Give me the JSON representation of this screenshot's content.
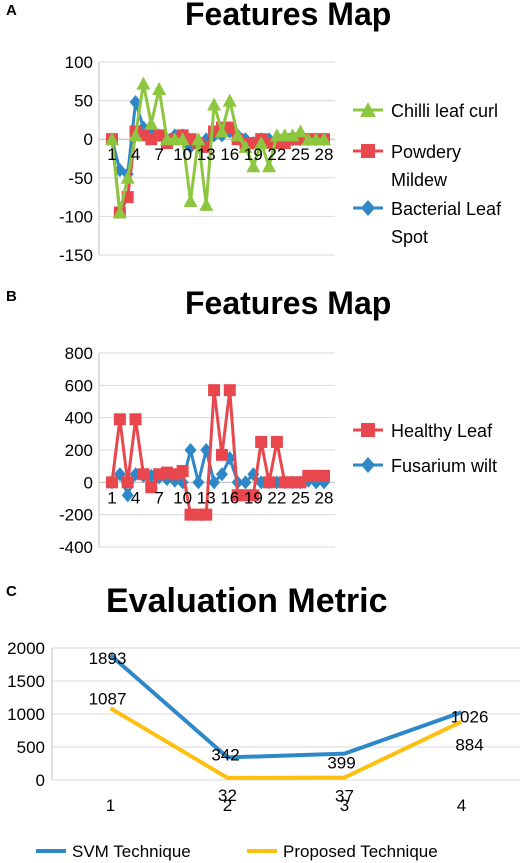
{
  "panels": [
    {
      "letter": "A",
      "title": "Features Map"
    },
    {
      "letter": "B",
      "title": "Features Map"
    },
    {
      "letter": "C",
      "title": "Evaluation Metric"
    }
  ],
  "colors": {
    "green": "#8DC63F",
    "red": "#E8474D",
    "blue": "#2E88C8",
    "yellow": "#FDC010",
    "grid": "#D9D9D9"
  },
  "chart_data": [
    {
      "type": "line",
      "title": "Features Map",
      "x": [
        1,
        2,
        3,
        4,
        5,
        6,
        7,
        8,
        9,
        10,
        11,
        12,
        13,
        14,
        15,
        16,
        17,
        18,
        19,
        20,
        21,
        22,
        23,
        24,
        25,
        26,
        27,
        28
      ],
      "x_tick_labels": [
        "1",
        "4",
        "7",
        "10",
        "13",
        "16",
        "19",
        "22",
        "25",
        "28"
      ],
      "ylim": [
        -150,
        100
      ],
      "y_ticks": [
        100,
        50,
        0,
        -50,
        -100,
        -150
      ],
      "grid": true,
      "legend_position": "right",
      "series": [
        {
          "name": "Chilli leaf curl",
          "color": "#8DC63F",
          "marker": "triangle",
          "values": [
            0,
            -95,
            -50,
            5,
            72,
            20,
            65,
            0,
            0,
            0,
            -80,
            0,
            -85,
            45,
            10,
            50,
            5,
            -10,
            -35,
            -5,
            -35,
            5,
            5,
            5,
            10,
            0,
            0,
            0
          ]
        },
        {
          "name": "Powdery Mildew",
          "color": "#E8474D",
          "marker": "square",
          "values": [
            0,
            -95,
            -75,
            10,
            5,
            0,
            5,
            -5,
            0,
            5,
            0,
            -5,
            -10,
            10,
            15,
            15,
            0,
            -5,
            -5,
            0,
            -5,
            -5,
            -5,
            0,
            0,
            0,
            0,
            0
          ]
        },
        {
          "name": "Bacterial Leaf Spot",
          "color": "#2E88C8",
          "marker": "diamond",
          "values": [
            0,
            -40,
            -45,
            48,
            15,
            10,
            5,
            0,
            5,
            5,
            -10,
            -5,
            0,
            5,
            5,
            10,
            5,
            0,
            -5,
            0,
            0,
            0,
            0,
            0,
            0,
            0,
            0,
            0
          ]
        }
      ]
    },
    {
      "type": "line",
      "title": "Features Map",
      "x": [
        1,
        2,
        3,
        4,
        5,
        6,
        7,
        8,
        9,
        10,
        11,
        12,
        13,
        14,
        15,
        16,
        17,
        18,
        19,
        20,
        21,
        22,
        23,
        24,
        25,
        26,
        27,
        28
      ],
      "x_tick_labels": [
        "1",
        "4",
        "7",
        "10",
        "13",
        "16",
        "19",
        "22",
        "25",
        "28"
      ],
      "ylim": [
        -400,
        800
      ],
      "y_ticks": [
        800,
        600,
        400,
        200,
        0,
        -200,
        -400
      ],
      "grid": true,
      "legend_position": "right",
      "series": [
        {
          "name": "Healthy Leaf",
          "color": "#E8474D",
          "marker": "square",
          "values": [
            0,
            390,
            0,
            390,
            50,
            -30,
            50,
            60,
            50,
            70,
            -200,
            -200,
            -200,
            570,
            170,
            570,
            -80,
            -80,
            -80,
            250,
            0,
            250,
            0,
            0,
            0,
            40,
            40,
            40
          ]
        },
        {
          "name": "Fusarium wilt",
          "color": "#2E88C8",
          "marker": "diamond",
          "values": [
            0,
            50,
            -80,
            50,
            40,
            40,
            30,
            20,
            10,
            0,
            200,
            0,
            200,
            0,
            50,
            150,
            0,
            0,
            50,
            0,
            0,
            0,
            0,
            0,
            0,
            10,
            0,
            0
          ]
        }
      ]
    },
    {
      "type": "line",
      "title": "Evaluation Metric",
      "categories": [
        "1",
        "2",
        "3",
        "4"
      ],
      "ylim": [
        0,
        2000
      ],
      "y_ticks": [
        2000,
        1500,
        1000,
        500,
        0
      ],
      "grid": true,
      "legend_position": "bottom",
      "series": [
        {
          "name": "SVM Technique",
          "color": "#2E88C8",
          "values": [
            1893,
            342,
            399,
            1026
          ],
          "data_labels": [
            "1893",
            "342",
            "399",
            "1026"
          ]
        },
        {
          "name": "Proposed Technique",
          "color": "#FDC010",
          "values": [
            1087,
            32,
            37,
            884
          ],
          "data_labels": [
            "1087",
            "32",
            "37",
            "884"
          ]
        }
      ]
    }
  ]
}
